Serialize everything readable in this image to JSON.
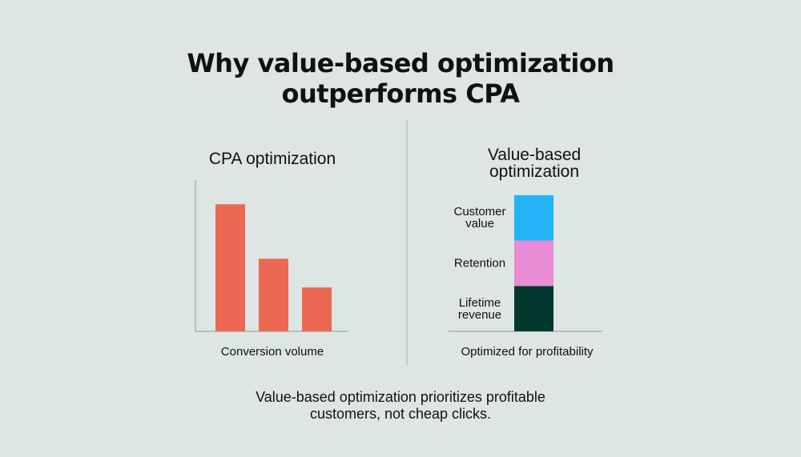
{
  "title": "Why value-based optimization outperforms CPA",
  "caption": "Value-based optimization prioritizes profitable customers, not cheap clicks.",
  "chart_data": [
    {
      "type": "bar",
      "title": "CPA optimization",
      "x_label": "Conversion volume",
      "values": [
        84,
        48,
        29
      ],
      "color": "#ec6853",
      "ylim": [
        0,
        100
      ]
    },
    {
      "type": "stacked_bar",
      "title": "Value-based optimization",
      "x_label": "Optimized for profitability",
      "series": [
        {
          "name": "Lifetime revenue",
          "color": "#03382f",
          "values": [
            30
          ]
        },
        {
          "name": "Retention",
          "color": "#e98bd5",
          "values": [
            30
          ]
        },
        {
          "name": "Customer value",
          "color": "#22b4f4",
          "values": [
            30
          ]
        }
      ],
      "ylim": [
        0,
        100
      ]
    }
  ]
}
